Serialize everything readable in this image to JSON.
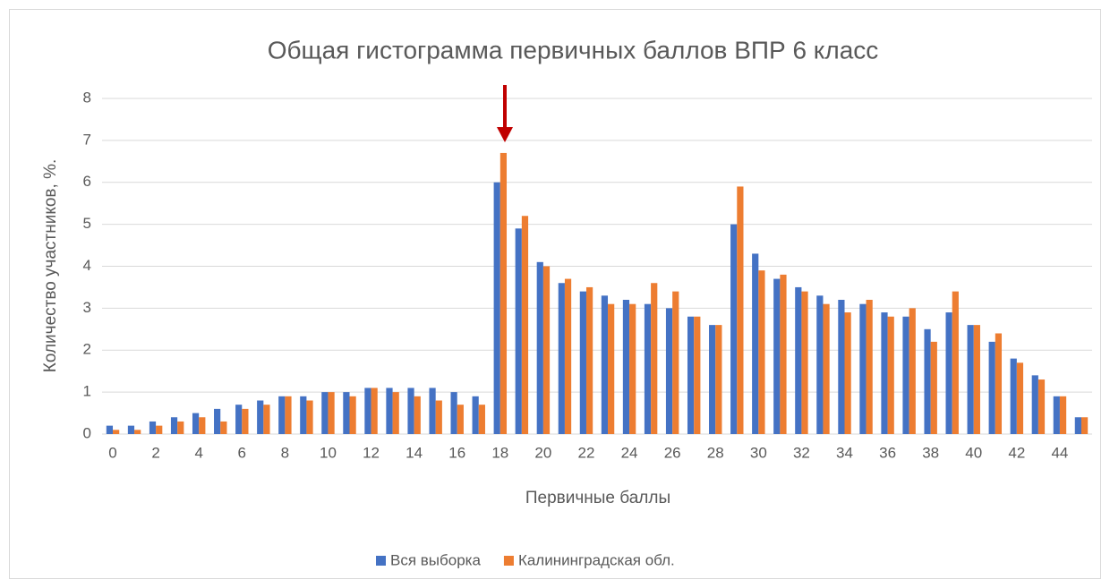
{
  "chart_data": {
    "type": "bar",
    "title": "Общая гистограмма первичных баллов ВПР 6 класс",
    "x_label": "Первичные баллы",
    "y_label": "Количество участников, %.",
    "categories": [
      0,
      null,
      2,
      null,
      4,
      null,
      6,
      null,
      8,
      null,
      10,
      null,
      12,
      null,
      14,
      null,
      16,
      null,
      18,
      null,
      20,
      null,
      22,
      null,
      24,
      null,
      26,
      null,
      28,
      null,
      30,
      null,
      32,
      null,
      34,
      null,
      36,
      null,
      38,
      null,
      40,
      null,
      42,
      null,
      44,
      null
    ],
    "series": [
      {
        "name": "Вся выборка",
        "color": "#4472c4",
        "values": [
          0.2,
          0.2,
          0.3,
          0.4,
          0.5,
          0.6,
          0.7,
          0.8,
          0.9,
          0.9,
          1.0,
          1.0,
          1.1,
          1.1,
          1.1,
          1.1,
          1.0,
          0.9,
          6.0,
          4.9,
          4.1,
          3.6,
          3.4,
          3.3,
          3.2,
          3.1,
          3.0,
          2.8,
          2.6,
          5.0,
          4.3,
          3.7,
          3.5,
          3.3,
          3.2,
          3.1,
          2.9,
          2.8,
          2.5,
          2.9,
          2.6,
          2.2,
          1.8,
          1.4,
          0.9,
          0.4
        ]
      },
      {
        "name": "Калининградская обл.",
        "color": "#ed7d31",
        "values": [
          0.1,
          0.1,
          0.2,
          0.3,
          0.4,
          0.3,
          0.6,
          0.7,
          0.9,
          0.8,
          1.0,
          0.9,
          1.1,
          1.0,
          0.9,
          0.8,
          0.7,
          0.7,
          6.7,
          5.2,
          4.0,
          3.7,
          3.5,
          3.1,
          3.1,
          3.6,
          3.4,
          2.8,
          2.6,
          5.9,
          3.9,
          3.8,
          3.4,
          3.1,
          2.9,
          3.2,
          2.8,
          3.0,
          2.2,
          3.4,
          2.6,
          2.4,
          1.7,
          1.3,
          0.9,
          0.4
        ]
      }
    ],
    "ylim": [
      0,
      8
    ],
    "yticks": [
      0,
      1,
      2,
      3,
      4,
      5,
      6,
      7,
      8
    ],
    "grid": true,
    "legend": "bottom"
  }
}
